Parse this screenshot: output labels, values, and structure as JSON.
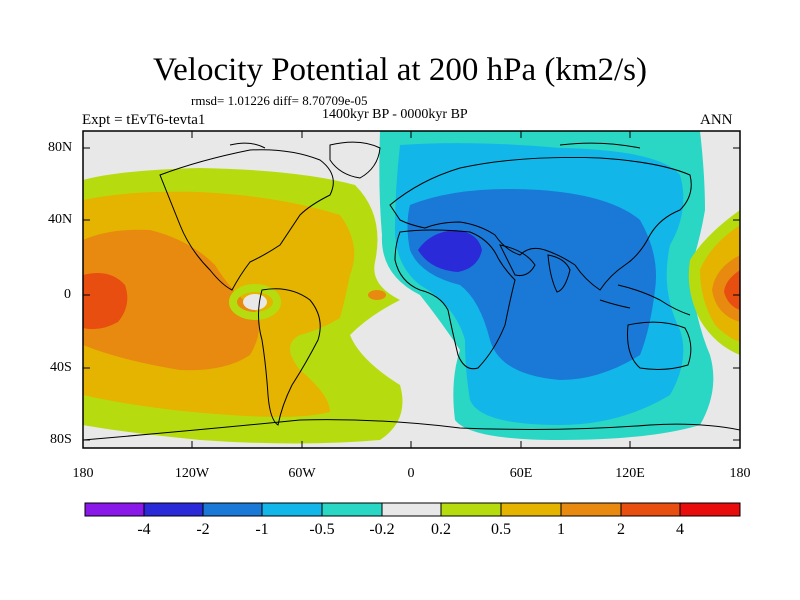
{
  "title": "Velocity Potential at 200 hPa (km2/s)",
  "stats": "rmsd= 1.01226 diff= 8.70709e-05",
  "subtitle": "1400kyr BP - 0000kyr BP",
  "experiment": "Expt = tEvT6-tevta1",
  "season": "ANN",
  "lat_labels": [
    "80N",
    "40N",
    "0",
    "40S",
    "80S"
  ],
  "lon_labels": [
    "180",
    "120W",
    "60W",
    "0",
    "60E",
    "120E",
    "180"
  ],
  "colorbar": {
    "labels": [
      "-4",
      "-2",
      "-1",
      "-0.5",
      "-0.2",
      "0.2",
      "0.5",
      "1",
      "2",
      "4"
    ],
    "colors": [
      "#8a18e8",
      "#2a2ad8",
      "#1a78d6",
      "#12b6e8",
      "#2ad6c4",
      "#e8e8e8",
      "#b6dc10",
      "#e4b400",
      "#e88a10",
      "#e84e10",
      "#e80c0c"
    ]
  }
}
